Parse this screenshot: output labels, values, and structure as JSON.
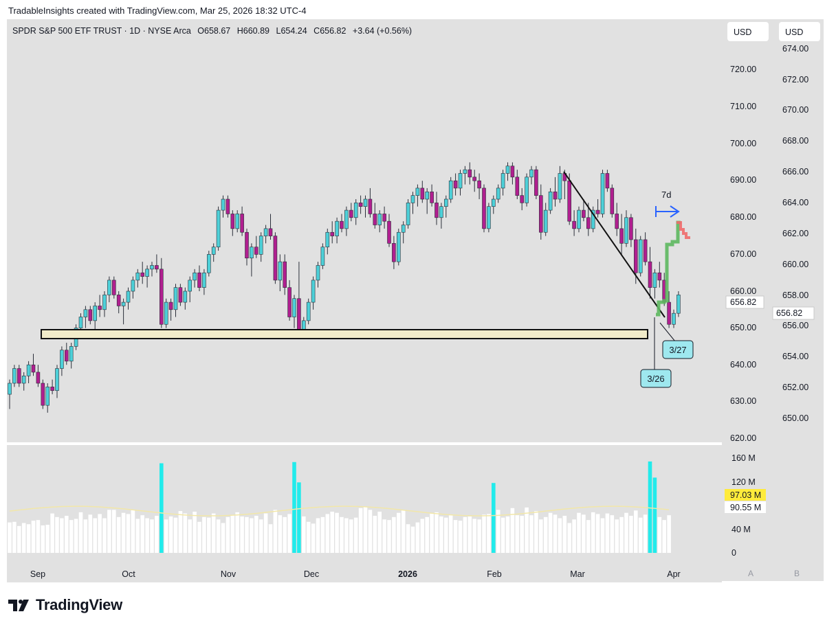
{
  "header": {
    "credit": "TradableInsights created with TradingView.com, Mar 25, 2026 18:32 UTC-4"
  },
  "legend": {
    "symbol": "SPDR S&P 500 ETF TRUST · 1D · NYSE Arca",
    "open": "O658.67",
    "high": "H660.89",
    "low": "L654.24",
    "close": "C656.82",
    "change": "+3.64 (+0.56%)"
  },
  "currency_left": "USD",
  "currency_right": "USD",
  "axis_left_ticks": [
    "720.00",
    "710.00",
    "700.00",
    "690.00",
    "680.00",
    "670.00",
    "660.00",
    "650.00",
    "640.00",
    "630.00",
    "620.00"
  ],
  "axis_right_ticks": [
    "674.00",
    "672.00",
    "670.00",
    "668.00",
    "666.00",
    "664.00",
    "662.00",
    "660.00",
    "658.00",
    "656.00",
    "654.00",
    "652.00",
    "650.00"
  ],
  "price_badge_left": "656.82",
  "price_badge_right": "656.82",
  "volume_ticks": [
    "160 M",
    "120 M",
    "40 M",
    "0"
  ],
  "volume_badge_ma": "97.03 M",
  "volume_badge_vol": "90.55 M",
  "x_ticks": [
    "Sep",
    "Oct",
    "Nov",
    "Dec",
    "2026",
    "Feb",
    "Mar",
    "Apr"
  ],
  "scale_a": "A",
  "scale_b": "B",
  "annotations": {
    "label_7d": "7d",
    "date_1": "3/26",
    "date_2": "3/27"
  },
  "footer": {
    "brand": "TradingView"
  },
  "colors": {
    "up": "#4dd0d8",
    "down": "#b01f8f",
    "pane_bg": "#e1e1e1",
    "support_fill": "#f1ebc9",
    "projection_up": "#5db85f",
    "projection_down": "#f06c6c",
    "arrow": "#2962ff",
    "volume_normal": "#ffffff",
    "volume_high": "#22ebeb",
    "volume_ma": "#f2e7a8",
    "badge_ma": "#ffeb3b"
  },
  "chart_data": {
    "type": "candlestick",
    "title": "SPDR S&P 500 ETF TRUST · 1D · NYSE Arca",
    "ylim": [
      620,
      725
    ],
    "support_zone": [
      648.5,
      650.5
    ],
    "trendline": [
      [
        126,
        692.5
      ],
      [
        136,
        654
      ]
    ],
    "projection": {
      "up_path_y": [
        655,
        655,
        657,
        657,
        658,
        658,
        673,
        673,
        674,
        674,
        681,
        681
      ],
      "down_path_y": [
        681,
        681,
        678,
        678,
        676,
        676,
        675,
        675
      ]
    },
    "candles": [
      [
        632,
        636,
        628,
        635
      ],
      [
        635,
        640,
        634,
        639
      ],
      [
        639,
        640,
        634,
        635
      ],
      [
        635,
        638,
        633,
        637
      ],
      [
        637,
        641,
        635,
        640
      ],
      [
        640,
        643,
        637,
        638
      ],
      [
        638,
        640,
        634,
        635
      ],
      [
        635,
        636,
        628,
        629
      ],
      [
        629,
        635,
        627,
        634
      ],
      [
        634,
        636,
        632,
        633
      ],
      [
        633,
        640,
        631,
        639
      ],
      [
        639,
        645,
        637,
        644
      ],
      [
        644,
        646,
        640,
        641
      ],
      [
        641,
        646,
        639,
        645
      ],
      [
        645,
        651,
        644,
        650
      ],
      [
        650,
        654,
        647,
        653
      ],
      [
        653,
        656,
        650,
        655
      ],
      [
        655,
        656,
        651,
        652
      ],
      [
        652,
        657,
        649,
        656
      ],
      [
        656,
        659,
        653,
        655
      ],
      [
        655,
        660,
        653,
        659
      ],
      [
        659,
        664,
        657,
        663
      ],
      [
        663,
        664,
        658,
        659
      ],
      [
        659,
        660,
        654,
        656
      ],
      [
        656,
        658,
        651,
        657
      ],
      [
        657,
        661,
        655,
        660
      ],
      [
        660,
        664,
        658,
        663
      ],
      [
        663,
        666,
        661,
        665
      ],
      [
        665,
        668,
        662,
        664
      ],
      [
        664,
        667,
        661,
        666
      ],
      [
        666,
        668,
        664,
        667
      ],
      [
        667,
        670,
        665,
        666
      ],
      [
        666,
        669,
        650,
        651
      ],
      [
        651,
        658,
        650,
        657
      ],
      [
        657,
        658,
        652,
        655
      ],
      [
        655,
        662,
        653,
        661
      ],
      [
        661,
        662,
        656,
        657
      ],
      [
        657,
        661,
        655,
        660
      ],
      [
        660,
        664,
        657,
        663
      ],
      [
        663,
        666,
        661,
        665
      ],
      [
        665,
        667,
        660,
        661
      ],
      [
        661,
        666,
        659,
        665
      ],
      [
        665,
        671,
        664,
        670
      ],
      [
        670,
        673,
        668,
        672
      ],
      [
        672,
        683,
        671,
        682
      ],
      [
        682,
        686,
        680,
        685
      ],
      [
        685,
        686,
        680,
        681
      ],
      [
        681,
        682,
        675,
        677
      ],
      [
        677,
        682,
        676,
        681
      ],
      [
        681,
        683,
        675,
        676
      ],
      [
        676,
        677,
        667,
        669
      ],
      [
        669,
        673,
        664,
        672
      ],
      [
        672,
        675,
        669,
        670
      ],
      [
        670,
        676,
        668,
        675
      ],
      [
        675,
        678,
        673,
        677
      ],
      [
        677,
        681,
        674,
        675
      ],
      [
        675,
        676,
        662,
        663
      ],
      [
        663,
        670,
        660,
        668
      ],
      [
        668,
        670,
        659,
        661
      ],
      [
        661,
        663,
        652,
        653
      ],
      [
        653,
        659,
        650,
        658
      ],
      [
        658,
        668,
        648,
        649
      ],
      [
        649,
        653,
        648,
        652
      ],
      [
        652,
        658,
        651,
        657
      ],
      [
        657,
        664,
        655,
        663
      ],
      [
        663,
        668,
        661,
        667
      ],
      [
        667,
        673,
        666,
        672
      ],
      [
        672,
        677,
        670,
        676
      ],
      [
        676,
        679,
        673,
        675
      ],
      [
        675,
        680,
        673,
        679
      ],
      [
        679,
        681,
        676,
        677
      ],
      [
        677,
        683,
        675,
        682
      ],
      [
        682,
        684,
        679,
        680
      ],
      [
        680,
        685,
        678,
        684
      ],
      [
        684,
        686,
        681,
        683
      ],
      [
        683,
        686,
        680,
        685
      ],
      [
        685,
        688,
        680,
        681
      ],
      [
        681,
        684,
        677,
        678
      ],
      [
        678,
        682,
        676,
        681
      ],
      [
        681,
        683,
        677,
        679
      ],
      [
        679,
        681,
        672,
        673
      ],
      [
        673,
        675,
        666,
        668
      ],
      [
        668,
        677,
        667,
        676
      ],
      [
        676,
        679,
        673,
        678
      ],
      [
        678,
        685,
        677,
        684
      ],
      [
        684,
        687,
        681,
        686
      ],
      [
        686,
        689,
        683,
        688
      ],
      [
        688,
        690,
        684,
        685
      ],
      [
        685,
        688,
        681,
        687
      ],
      [
        687,
        689,
        683,
        684
      ],
      [
        684,
        687,
        678,
        680
      ],
      [
        680,
        684,
        677,
        683
      ],
      [
        683,
        686,
        680,
        685
      ],
      [
        685,
        691,
        684,
        690
      ],
      [
        690,
        692,
        686,
        688
      ],
      [
        688,
        693,
        686,
        692
      ],
      [
        692,
        694,
        689,
        693
      ],
      [
        693,
        695,
        689,
        691
      ],
      [
        691,
        693,
        687,
        690
      ],
      [
        690,
        692,
        685,
        688
      ],
      [
        688,
        689,
        676,
        677
      ],
      [
        677,
        684,
        676,
        683
      ],
      [
        683,
        686,
        681,
        685
      ],
      [
        685,
        689,
        684,
        688
      ],
      [
        688,
        693,
        686,
        692
      ],
      [
        692,
        695,
        690,
        694
      ],
      [
        694,
        695,
        689,
        691
      ],
      [
        691,
        693,
        685,
        686
      ],
      [
        686,
        688,
        682,
        684
      ],
      [
        684,
        692,
        683,
        691
      ],
      [
        691,
        694,
        689,
        693
      ],
      [
        693,
        694,
        685,
        686
      ],
      [
        686,
        689,
        674,
        676
      ],
      [
        676,
        684,
        675,
        682
      ],
      [
        682,
        688,
        681,
        687
      ],
      [
        687,
        691,
        683,
        685
      ],
      [
        685,
        694,
        684,
        692
      ],
      [
        692,
        693,
        685,
        690
      ],
      [
        690,
        692,
        678,
        679
      ],
      [
        679,
        682,
        675,
        677
      ],
      [
        677,
        683,
        676,
        682
      ],
      [
        682,
        685,
        679,
        680
      ],
      [
        680,
        684,
        675,
        677
      ],
      [
        677,
        683,
        676,
        682
      ],
      [
        682,
        685,
        680,
        681
      ],
      [
        681,
        693,
        680,
        692
      ],
      [
        692,
        693,
        687,
        688
      ],
      [
        688,
        689,
        680,
        681
      ],
      [
        681,
        684,
        675,
        677
      ],
      [
        677,
        681,
        670,
        673
      ],
      [
        673,
        682,
        672,
        680
      ],
      [
        680,
        681,
        672,
        674
      ],
      [
        674,
        677,
        662,
        665
      ],
      [
        665,
        675,
        664,
        674
      ],
      [
        674,
        676,
        667,
        668
      ],
      [
        668,
        672,
        658,
        661
      ],
      [
        661,
        666,
        658,
        665
      ],
      [
        665,
        668,
        661,
        663
      ],
      [
        663,
        665,
        656,
        657
      ],
      [
        657,
        660,
        650,
        651
      ],
      [
        651,
        655,
        650,
        654
      ],
      [
        654,
        660,
        653,
        659
      ]
    ],
    "volume_m": [
      51,
      52,
      45,
      50,
      48,
      54,
      55,
      46,
      47,
      66,
      60,
      58,
      62,
      55,
      57,
      68,
      56,
      64,
      58,
      65,
      58,
      72,
      72,
      60,
      67,
      65,
      72,
      57,
      63,
      58,
      56,
      62,
      54,
      56,
      61,
      59,
      70,
      66,
      56,
      69,
      52,
      60,
      59,
      66,
      56,
      50,
      60,
      63,
      68,
      61,
      60,
      58,
      62,
      56,
      66,
      48,
      72,
      63,
      60,
      65,
      67,
      56,
      61,
      52,
      49,
      58,
      60,
      65,
      69,
      67,
      60,
      58,
      56,
      59,
      75,
      77,
      72,
      62,
      69,
      56,
      55,
      60,
      67,
      72,
      48,
      44,
      51,
      57,
      60,
      66,
      68,
      61,
      59,
      63,
      55,
      54,
      60,
      61,
      57,
      56,
      64,
      65,
      66,
      72,
      59,
      61,
      75,
      63,
      62,
      76,
      63,
      70,
      56,
      60,
      67,
      64,
      58,
      62,
      50,
      56,
      67,
      64,
      55,
      68,
      65,
      58,
      66,
      63,
      56,
      60,
      67,
      62,
      71,
      59,
      64,
      63,
      57,
      60,
      55,
      63
    ],
    "volume_high_idx": [
      32,
      60,
      102,
      135
    ],
    "volume_high_m": {
      "32": 150,
      "60": 152,
      "102": 117,
      "135": 153
    },
    "volume_extra_high_m": {
      "61": 118,
      "136": 126
    }
  }
}
